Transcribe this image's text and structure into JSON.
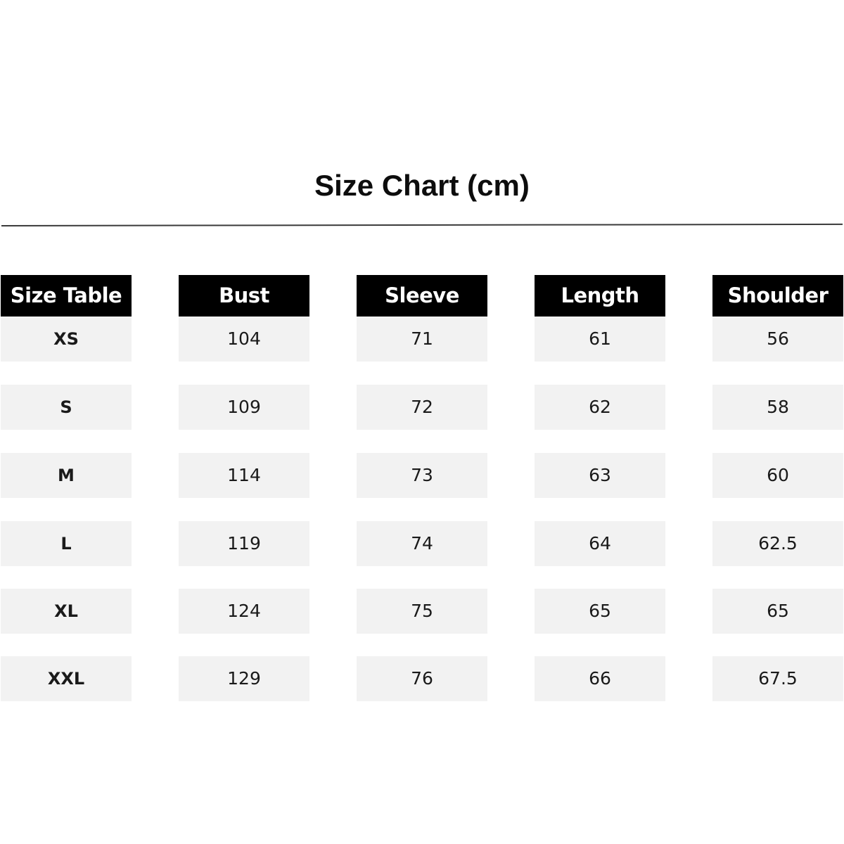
{
  "title": "Size Chart (cm)",
  "headers": [
    "Size Table",
    "Bust",
    "Sleeve",
    "Length",
    "Shoulder"
  ],
  "rows": [
    [
      "XS",
      "104",
      "71",
      "61",
      "56"
    ],
    [
      "S",
      "109",
      "72",
      "62",
      "58"
    ],
    [
      "M",
      "114",
      "73",
      "63",
      "60"
    ],
    [
      "L",
      "119",
      "74",
      "64",
      "62.5"
    ],
    [
      "XL",
      "124",
      "75",
      "65",
      "65"
    ],
    [
      "XXL",
      "129",
      "76",
      "66",
      "67.5"
    ]
  ],
  "colors": {
    "header_bg": "#000000",
    "header_text": "#ffffff",
    "cell_bg": "#f2f2f2"
  }
}
